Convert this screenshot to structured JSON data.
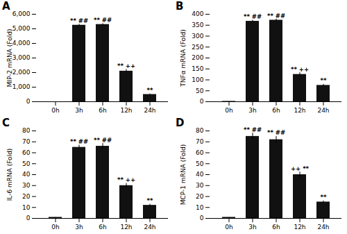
{
  "chart_data": [
    {
      "type": "bar",
      "title": "A",
      "ylabel": "MIP-2 mRNA (Fold)",
      "categories": [
        "0h",
        "3h",
        "6h",
        "12h",
        "24h"
      ],
      "values": [
        0,
        5250,
        5300,
        2100,
        500
      ],
      "errors": [
        0,
        60,
        60,
        120,
        40
      ],
      "color": "#111111",
      "ylim": [
        0,
        6000
      ],
      "yticks": [
        0,
        1000,
        2000,
        3000,
        4000,
        5000,
        6000
      ],
      "annotations": [
        {
          "x": "3h",
          "text": "** ##"
        },
        {
          "x": "6h",
          "text": "** ##"
        },
        {
          "x": "12h",
          "text": "** ++"
        },
        {
          "x": "24h",
          "text": "**"
        }
      ]
    },
    {
      "type": "bar",
      "title": "B",
      "ylabel": "TNFα mRNA (Fold)",
      "categories": [
        "0h",
        "3h",
        "6h",
        "12h",
        "24h"
      ],
      "values": [
        2,
        368,
        373,
        125,
        75
      ],
      "errors": [
        0.2,
        5,
        5,
        8,
        5
      ],
      "color": "#111111",
      "ylim": [
        0,
        400
      ],
      "yticks": [
        0,
        50,
        100,
        150,
        200,
        250,
        300,
        350,
        400
      ],
      "annotations": [
        {
          "x": "3h",
          "text": "** ##"
        },
        {
          "x": "6h",
          "text": "** ##"
        },
        {
          "x": "12h",
          "text": "** ++"
        },
        {
          "x": "24h",
          "text": "**"
        }
      ]
    },
    {
      "type": "bar",
      "title": "C",
      "ylabel": "IL-6 mRNA (Fold)",
      "categories": [
        "0h",
        "3h",
        "6h",
        "12h",
        "24h"
      ],
      "values": [
        1,
        65,
        66,
        30,
        12
      ],
      "errors": [
        0.1,
        2,
        2.5,
        2,
        1
      ],
      "color": "#111111",
      "ylim": [
        0,
        80
      ],
      "yticks": [
        0,
        10,
        20,
        30,
        40,
        50,
        60,
        70,
        80
      ],
      "annotations": [
        {
          "x": "3h",
          "text": "** ##"
        },
        {
          "x": "6h",
          "text": "** ##"
        },
        {
          "x": "12h",
          "text": "** ++"
        },
        {
          "x": "24h",
          "text": "**"
        }
      ]
    },
    {
      "type": "bar",
      "title": "D",
      "ylabel": "MCP-1 mRNA (Fold)",
      "categories": [
        "0h",
        "3h",
        "6h",
        "12h",
        "24h"
      ],
      "values": [
        1,
        75,
        72,
        40,
        15
      ],
      "errors": [
        0.1,
        3,
        3,
        2.5,
        1
      ],
      "color": "#111111",
      "ylim": [
        0,
        80
      ],
      "yticks": [
        0,
        10,
        20,
        30,
        40,
        50,
        60,
        70,
        80
      ],
      "annotations": [
        {
          "x": "3h",
          "text": "** ##"
        },
        {
          "x": "6h",
          "text": "** ##"
        },
        {
          "x": "12h",
          "text": "++ **"
        },
        {
          "x": "24h",
          "text": "**"
        }
      ]
    }
  ]
}
